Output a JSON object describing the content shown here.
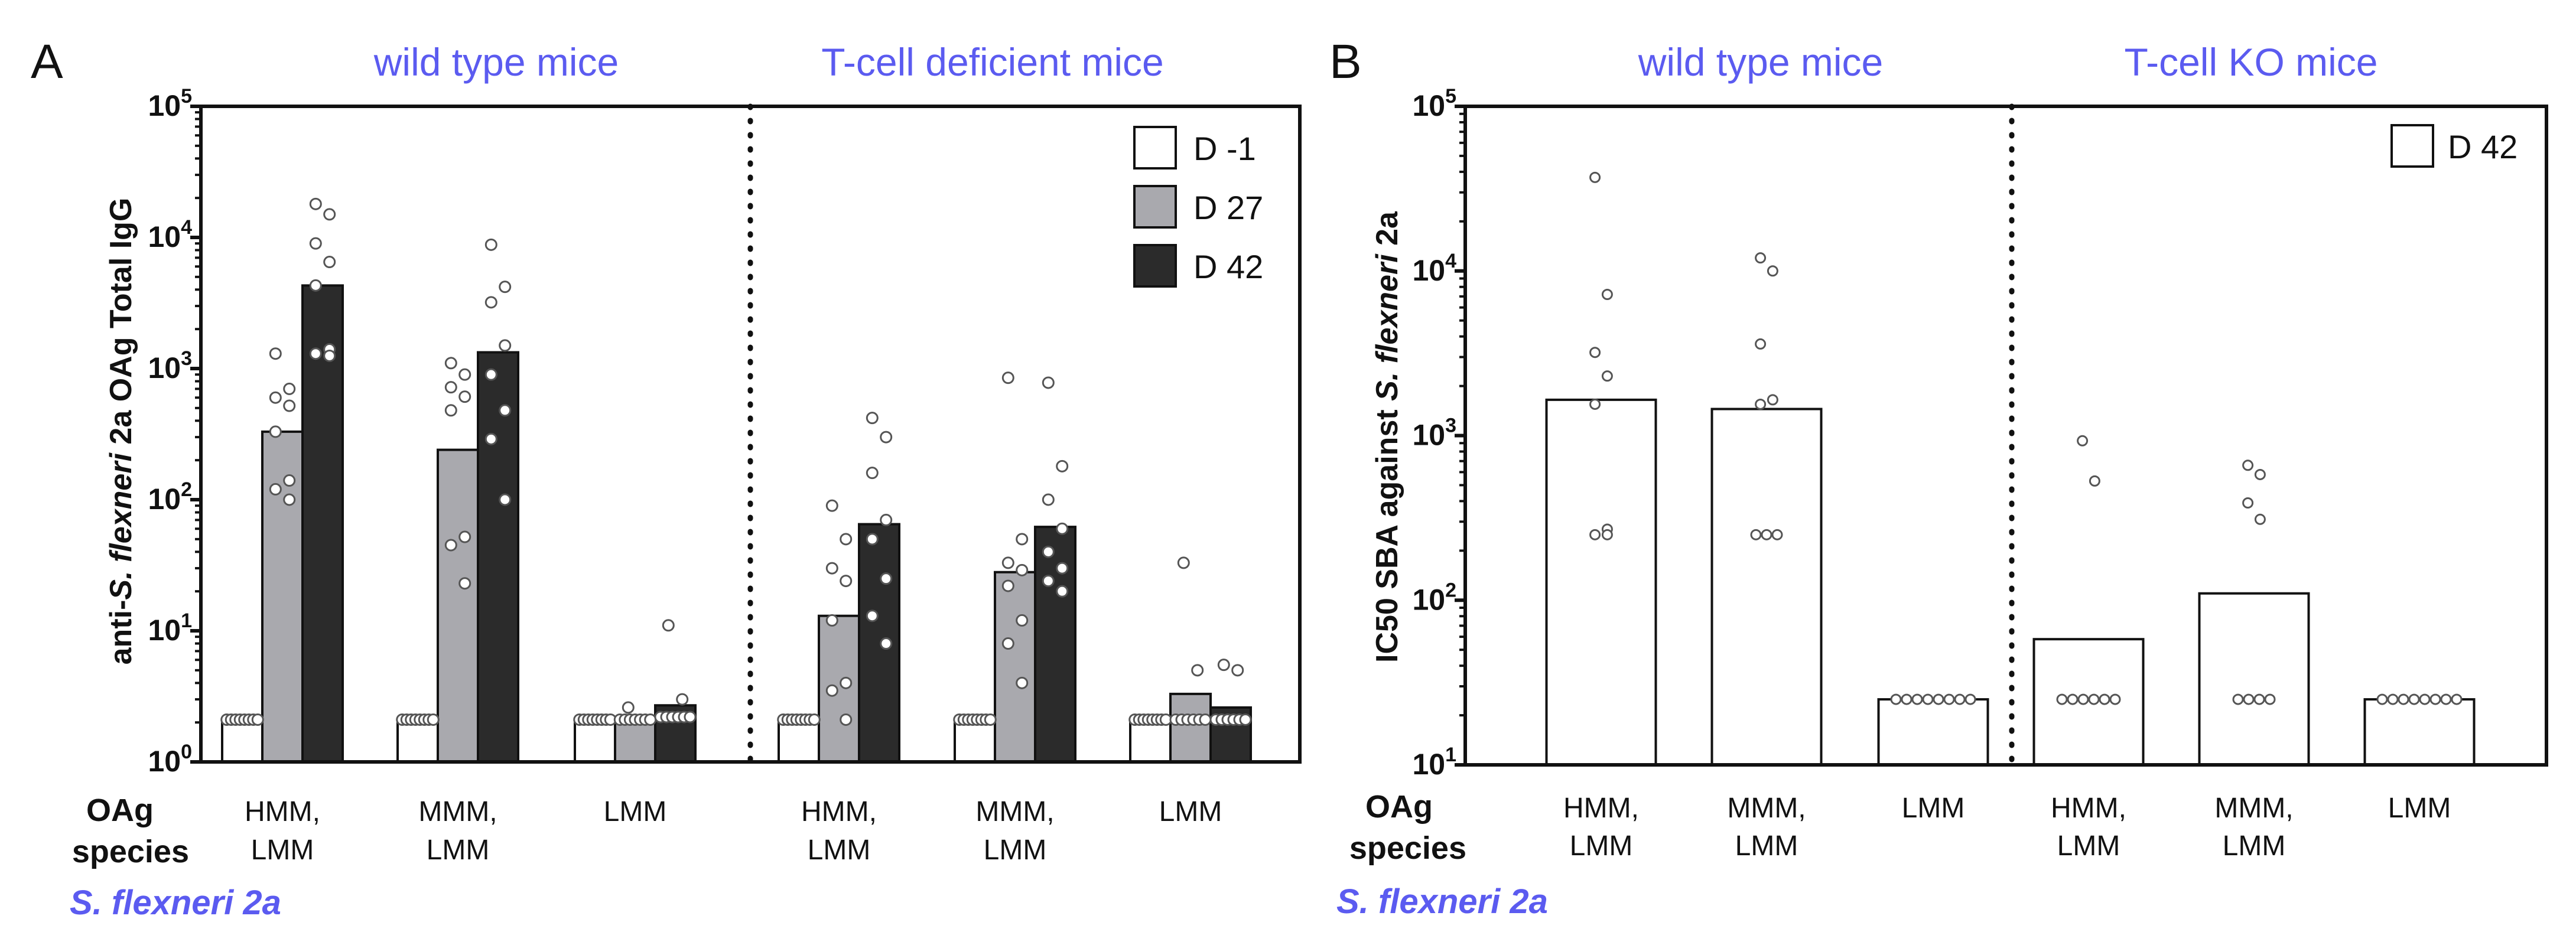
{
  "chart_data": [
    {
      "panel": "A",
      "type": "bar",
      "scale": "log10",
      "ylabel_parts": [
        "anti-",
        "S. flexneri",
        " 2a OAg Total IgG"
      ],
      "ylim": [
        1,
        100000
      ],
      "yticks": [
        {
          "value": 1,
          "base": "10",
          "exp": "0"
        },
        {
          "value": 10,
          "base": "10",
          "exp": "1"
        },
        {
          "value": 100,
          "base": "10",
          "exp": "2"
        },
        {
          "value": 1000,
          "base": "10",
          "exp": "3"
        },
        {
          "value": 10000,
          "base": "10",
          "exp": "4"
        },
        {
          "value": 100000,
          "base": "10",
          "exp": "5"
        }
      ],
      "group_titles": [
        "wild type mice",
        "T-cell deficient mice"
      ],
      "xlabel_lines": [
        "OAg",
        "species"
      ],
      "categories": [
        {
          "line1": "HMM,",
          "line2": "LMM"
        },
        {
          "line1": "MMM,",
          "line2": "LMM"
        },
        {
          "line1": "LMM",
          "line2": ""
        },
        {
          "line1": "HMM,",
          "line2": "LMM"
        },
        {
          "line1": "MMM,",
          "line2": "LMM"
        },
        {
          "line1": "LMM",
          "line2": ""
        }
      ],
      "species_label": "S. flexneri 2a",
      "legend": [
        {
          "name": "D -1",
          "color": "#ffffff"
        },
        {
          "name": "D 27",
          "color": "#a9a9ae"
        },
        {
          "name": "D 42",
          "color": "#2b2b2b"
        }
      ],
      "series": [
        {
          "name": "D -1",
          "color": "#ffffff",
          "values": [
            2.1,
            2.1,
            2.1,
            2.1,
            2.1,
            2.1
          ],
          "points": [
            [
              2.1,
              2.1,
              2.1,
              2.1,
              2.1,
              2.1,
              2.1,
              2.1
            ],
            [
              2.1,
              2.1,
              2.1,
              2.1,
              2.1,
              2.1,
              2.1,
              2.1
            ],
            [
              2.1,
              2.1,
              2.1,
              2.1,
              2.1,
              2.1,
              2.1,
              2.1
            ],
            [
              2.1,
              2.1,
              2.1,
              2.1,
              2.1,
              2.1,
              2.1,
              2.1
            ],
            [
              2.1,
              2.1,
              2.1,
              2.1,
              2.1,
              2.1,
              2.1,
              2.1
            ],
            [
              2.1,
              2.1,
              2.1,
              2.1,
              2.1,
              2.1,
              2.1,
              2.1
            ]
          ]
        },
        {
          "name": "D 27",
          "color": "#a9a9ae",
          "values": [
            330,
            240,
            2.1,
            13,
            28,
            3.3
          ],
          "points": [
            [
              1300,
              700,
              600,
              520,
              330,
              140,
              120,
              100
            ],
            [
              1100,
              900,
              720,
              610,
              480,
              52,
              45,
              23
            ],
            [
              2.6,
              2.1,
              2.1,
              2.1,
              2.1,
              2.1,
              2.1,
              2.1
            ],
            [
              90,
              50,
              30,
              24,
              12,
              4,
              3.5,
              2.1
            ],
            [
              850,
              50,
              33,
              29,
              22,
              12,
              8,
              4
            ],
            [
              33,
              5,
              2.1,
              2.1,
              2.1,
              2.1,
              2.1,
              2.1
            ]
          ]
        },
        {
          "name": "D 42",
          "color": "#2b2b2b",
          "values": [
            4300,
            1330,
            2.7,
            65,
            62,
            2.6
          ],
          "points": [
            [
              18000,
              15000,
              9000,
              6500,
              4300,
              1400,
              1300,
              1250
            ],
            [
              8800,
              4200,
              3200,
              1500,
              900,
              480,
              290,
              100
            ],
            [
              11,
              3,
              2.2,
              2.2,
              2.2,
              2.2,
              2.2,
              2.2
            ],
            [
              420,
              300,
              160,
              70,
              50,
              25,
              13,
              8
            ],
            [
              780,
              180,
              100,
              60,
              40,
              30,
              24,
              20
            ],
            [
              5.5,
              5,
              2.1,
              2.1,
              2.1,
              2.1,
              2.1,
              2.1
            ]
          ]
        }
      ]
    },
    {
      "panel": "B",
      "type": "bar",
      "scale": "log10",
      "ylabel_parts": [
        "IC50 SBA against ",
        "S. flexneri",
        " 2a"
      ],
      "ylim": [
        10,
        100000
      ],
      "yticks": [
        {
          "value": 10,
          "base": "10",
          "exp": "1"
        },
        {
          "value": 100,
          "base": "10",
          "exp": "2"
        },
        {
          "value": 1000,
          "base": "10",
          "exp": "3"
        },
        {
          "value": 10000,
          "base": "10",
          "exp": "4"
        },
        {
          "value": 100000,
          "base": "10",
          "exp": "5"
        }
      ],
      "group_titles": [
        "wild type mice",
        "T-cell KO mice"
      ],
      "xlabel_lines": [
        "OAg",
        "species"
      ],
      "categories": [
        {
          "line1": "HMM,",
          "line2": "LMM"
        },
        {
          "line1": "MMM,",
          "line2": "LMM"
        },
        {
          "line1": "LMM",
          "line2": ""
        },
        {
          "line1": "HMM,",
          "line2": "LMM"
        },
        {
          "line1": "MMM,",
          "line2": "LMM"
        },
        {
          "line1": "LMM",
          "line2": ""
        }
      ],
      "species_label": "S. flexneri 2a",
      "legend": [
        {
          "name": "D 42",
          "color": "#ffffff"
        }
      ],
      "series": [
        {
          "name": "D 42",
          "color": "#ffffff",
          "values": [
            1650,
            1450,
            25,
            58,
            110,
            25
          ],
          "points": [
            [
              37000,
              7200,
              3200,
              2300,
              1550,
              270,
              250,
              250
            ],
            [
              12000,
              10000,
              3600,
              1650,
              1550,
              250,
              250,
              250
            ],
            [
              25,
              25,
              25,
              25,
              25,
              25,
              25,
              25
            ],
            [
              930,
              530,
              25,
              25,
              25,
              25,
              25,
              25
            ],
            [
              660,
              580,
              390,
              310,
              25,
              25,
              25,
              25
            ],
            [
              25,
              25,
              25,
              25,
              25,
              25,
              25,
              25
            ]
          ]
        }
      ]
    }
  ]
}
